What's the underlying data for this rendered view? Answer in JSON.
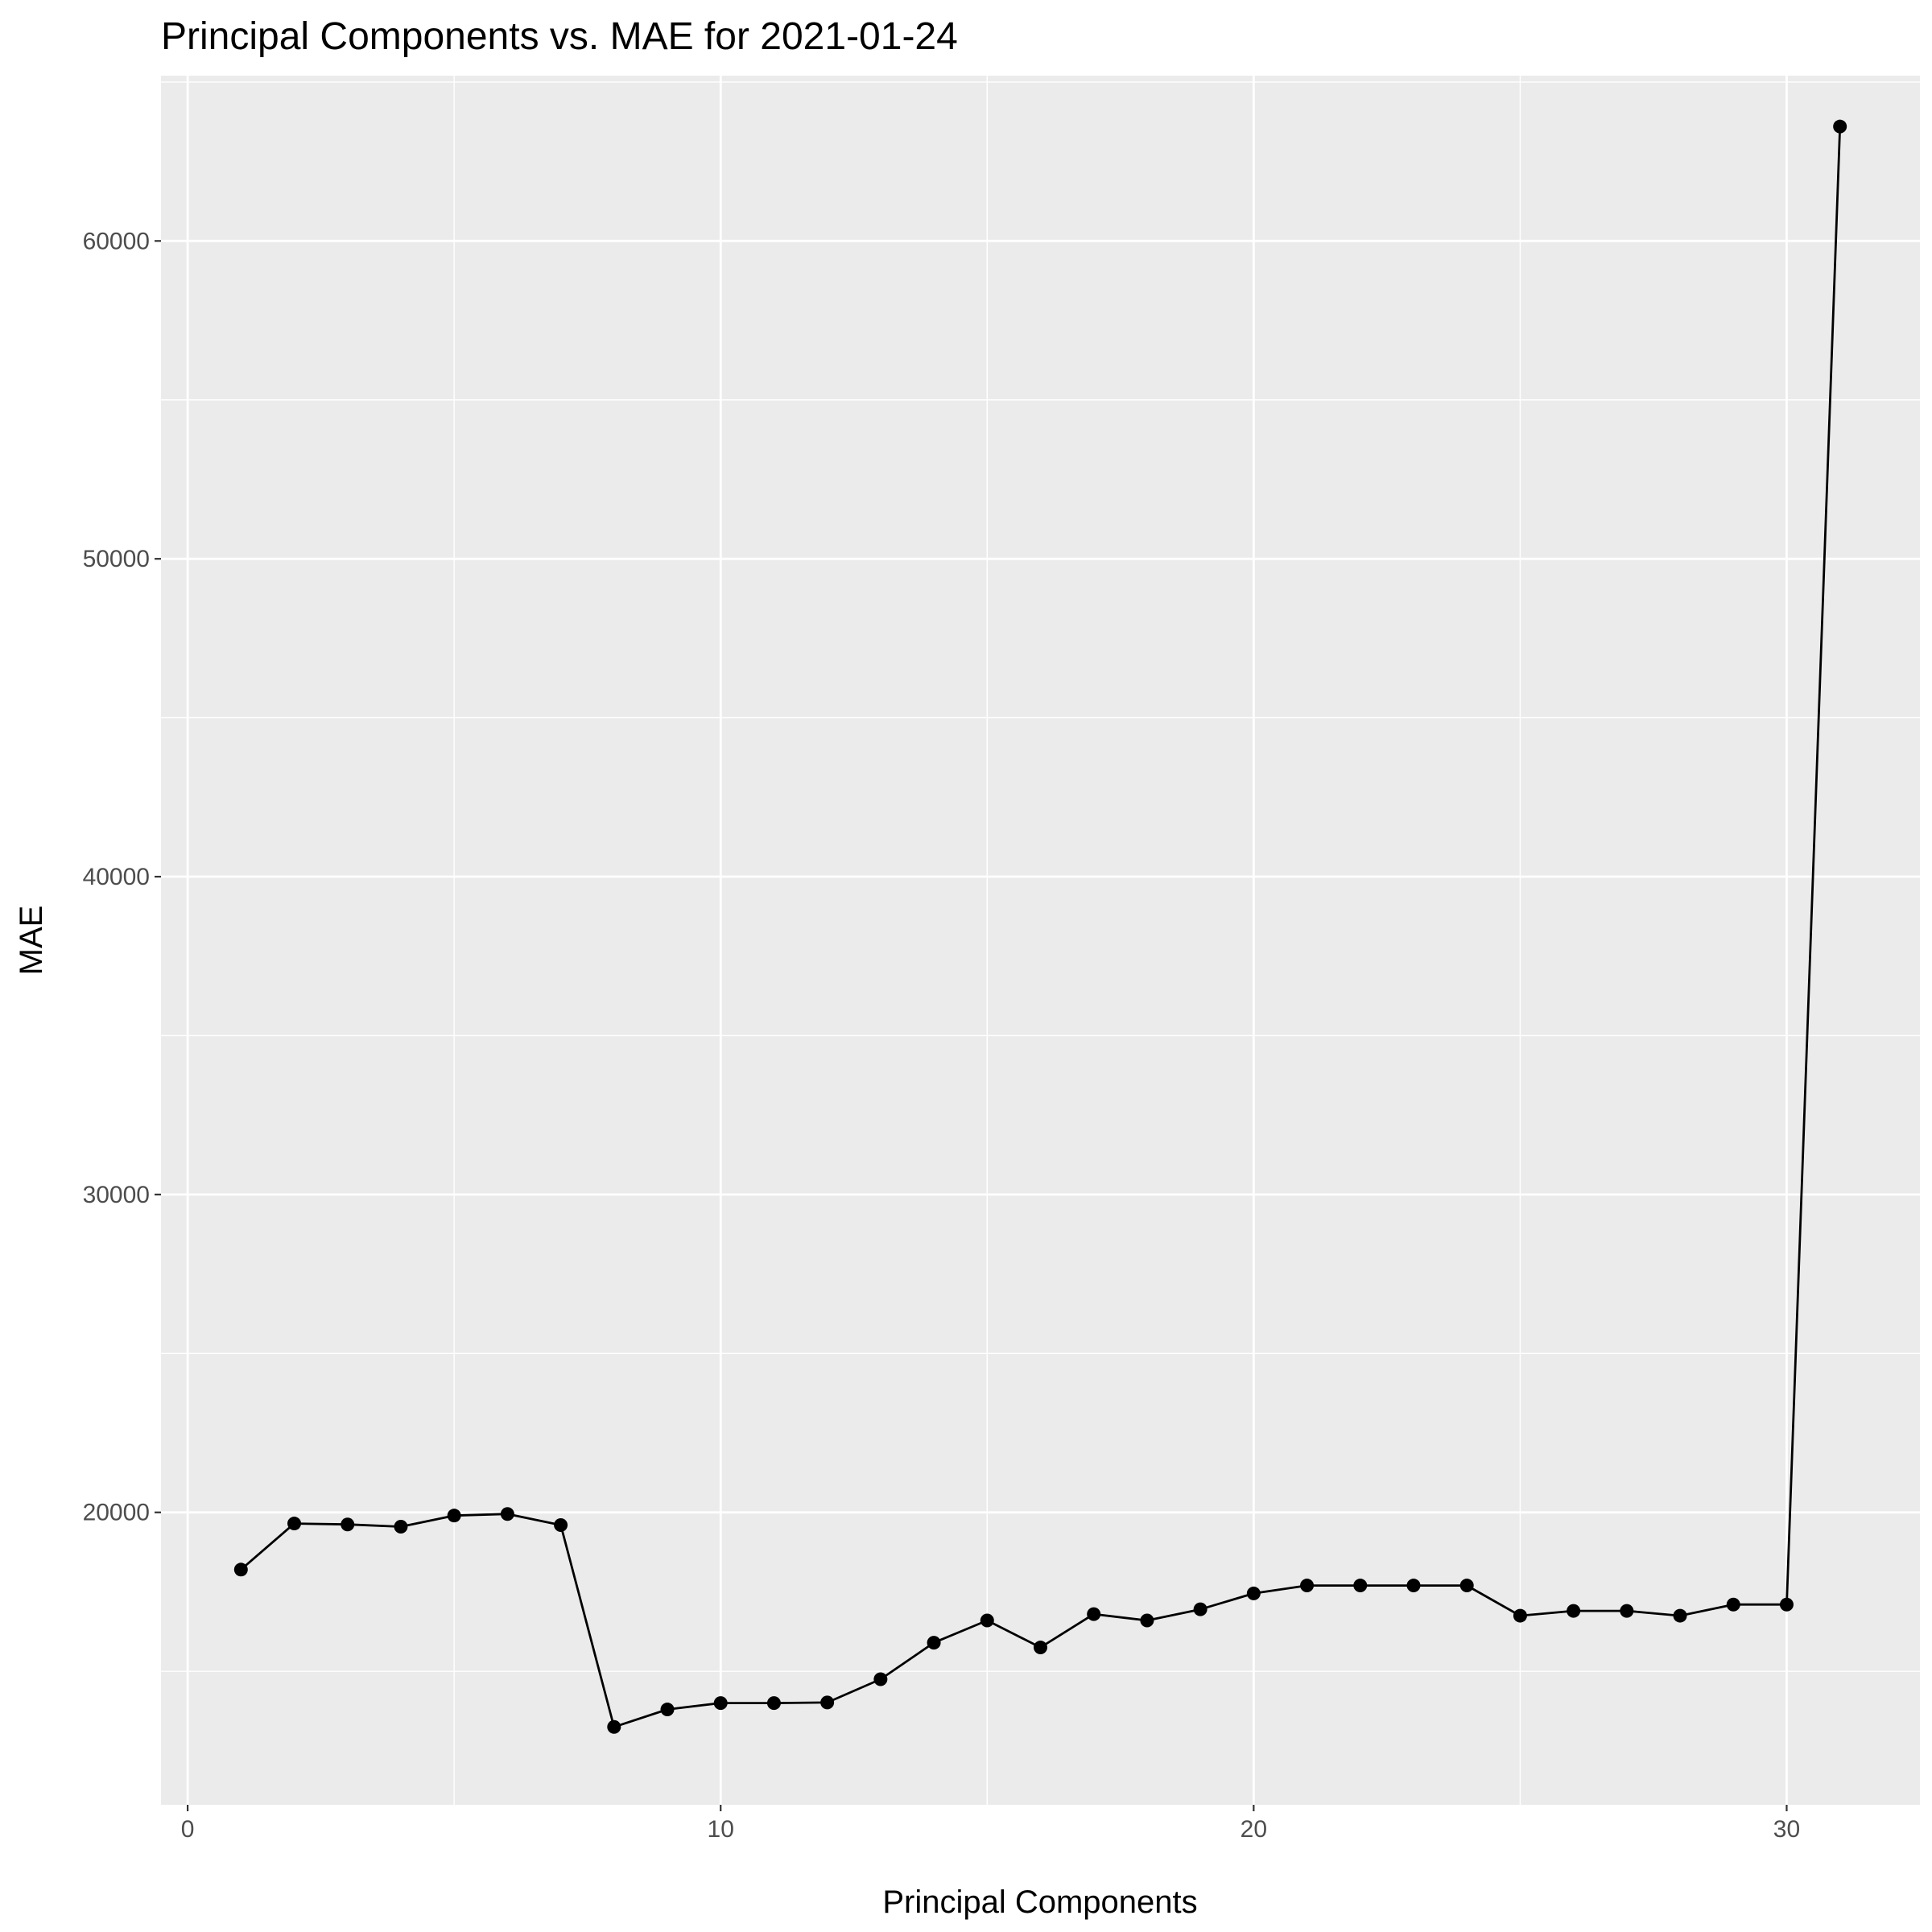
{
  "chart_data": {
    "type": "line",
    "title": "Principal Components vs. MAE for 2021-01-24",
    "xlabel": "Principal Components",
    "ylabel": "MAE",
    "xlim": [
      -0.5,
      32.5
    ],
    "ylim": [
      10800,
      65200
    ],
    "x_ticks": [
      0,
      10,
      20,
      30
    ],
    "x_tick_labels": [
      "0",
      "10",
      "20",
      "30"
    ],
    "y_ticks": [
      20000,
      30000,
      40000,
      50000,
      60000
    ],
    "y_tick_labels": [
      "20000",
      "30000",
      "40000",
      "50000",
      "60000"
    ],
    "x_minor_ticks": [
      5,
      15,
      25
    ],
    "y_minor_ticks": [
      15000,
      25000,
      35000,
      45000,
      55000,
      65000
    ],
    "grid": true,
    "legend": "none",
    "colors": {
      "panel_background": "#ebebeb",
      "grid_line": "#ffffff",
      "line": "#000000",
      "point": "#000000",
      "tick_text": "#4d4d4d",
      "tick_mark": "#333333"
    },
    "series": [
      {
        "x": [
          1,
          2,
          3,
          4,
          5,
          6,
          7,
          8,
          9,
          10,
          11,
          12,
          13,
          14,
          15,
          16,
          17,
          18,
          19,
          20,
          21,
          22,
          23,
          24,
          25,
          26,
          27,
          28,
          29,
          30,
          31
        ],
        "y": [
          18200,
          19650,
          19620,
          19550,
          19900,
          19950,
          19600,
          13250,
          13800,
          14000,
          14000,
          14020,
          14750,
          15900,
          16600,
          15750,
          16800,
          16600,
          16950,
          17450,
          17700,
          17700,
          17700,
          17700,
          16750,
          16900,
          16900,
          16750,
          17100,
          17100,
          63600
        ]
      }
    ]
  }
}
